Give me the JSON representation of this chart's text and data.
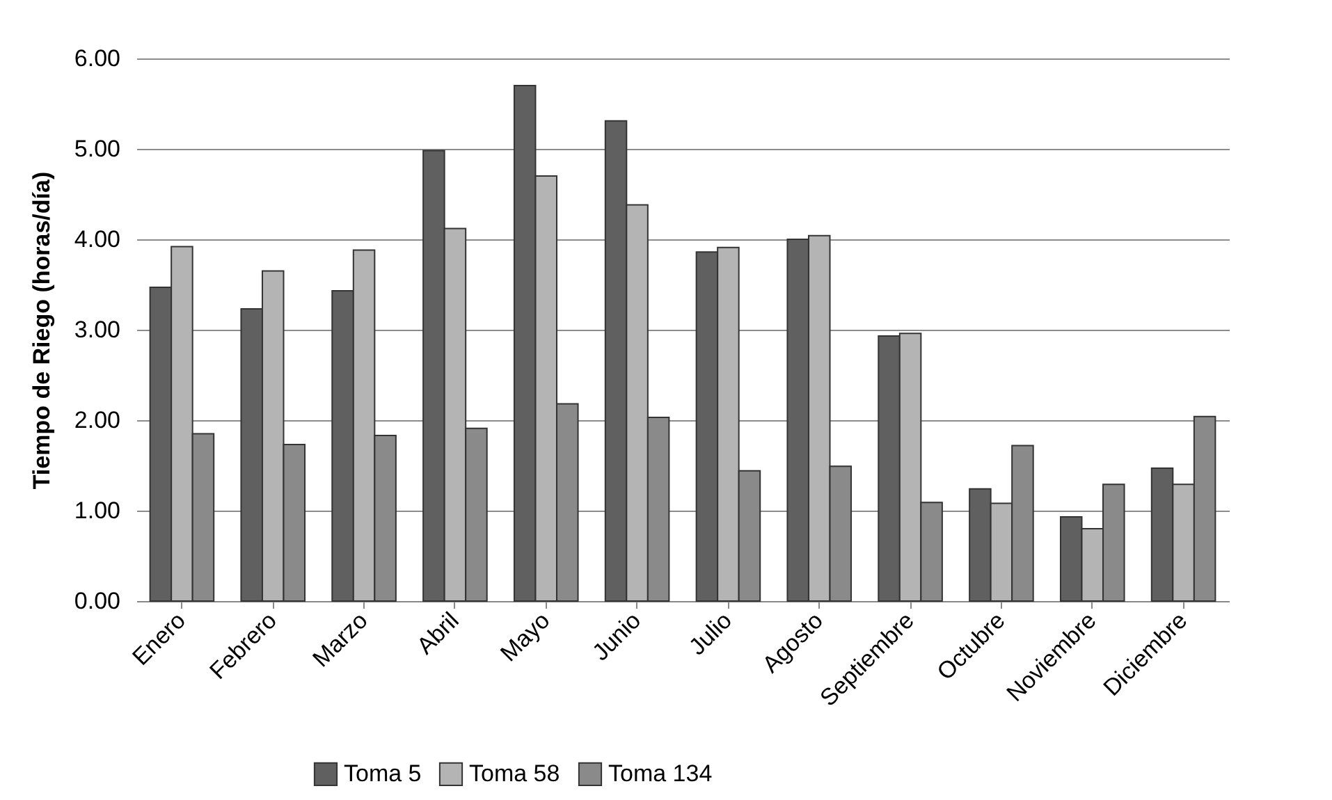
{
  "chart_data": {
    "type": "bar",
    "ylabel": "Tiempo de Riego (horas/día)",
    "categories": [
      "Enero",
      "Febrero",
      "Marzo",
      "Abril",
      "Mayo",
      "Junio",
      "Julio",
      "Agosto",
      "Septiembre",
      "Octubre",
      "Noviembre",
      "Diciembre"
    ],
    "series": [
      {
        "name": "Toma 5",
        "color": "#606060",
        "values": [
          3.47,
          3.23,
          3.43,
          4.98,
          5.7,
          5.31,
          3.86,
          4.0,
          2.93,
          1.24,
          0.93,
          1.47
        ]
      },
      {
        "name": "Toma 58",
        "color": "#b4b4b4",
        "values": [
          3.92,
          3.65,
          3.88,
          4.12,
          4.7,
          4.38,
          3.91,
          4.04,
          2.96,
          1.08,
          0.8,
          1.29
        ]
      },
      {
        "name": "Toma 134",
        "color": "#8a8a8a",
        "values": [
          1.85,
          1.73,
          1.83,
          1.91,
          2.18,
          2.03,
          1.44,
          1.49,
          1.09,
          1.72,
          1.29,
          2.04
        ]
      }
    ],
    "ylim": [
      0,
      6
    ],
    "yticks": [
      {
        "value": 0,
        "label": "0.00"
      },
      {
        "value": 1,
        "label": "1.00"
      },
      {
        "value": 2,
        "label": "2.00"
      },
      {
        "value": 3,
        "label": "3.00"
      },
      {
        "value": 4,
        "label": "4.00"
      },
      {
        "value": 5,
        "label": "5.00"
      },
      {
        "value": 6,
        "label": "6.00"
      }
    ],
    "grid": "y",
    "legend": "bottom left"
  }
}
